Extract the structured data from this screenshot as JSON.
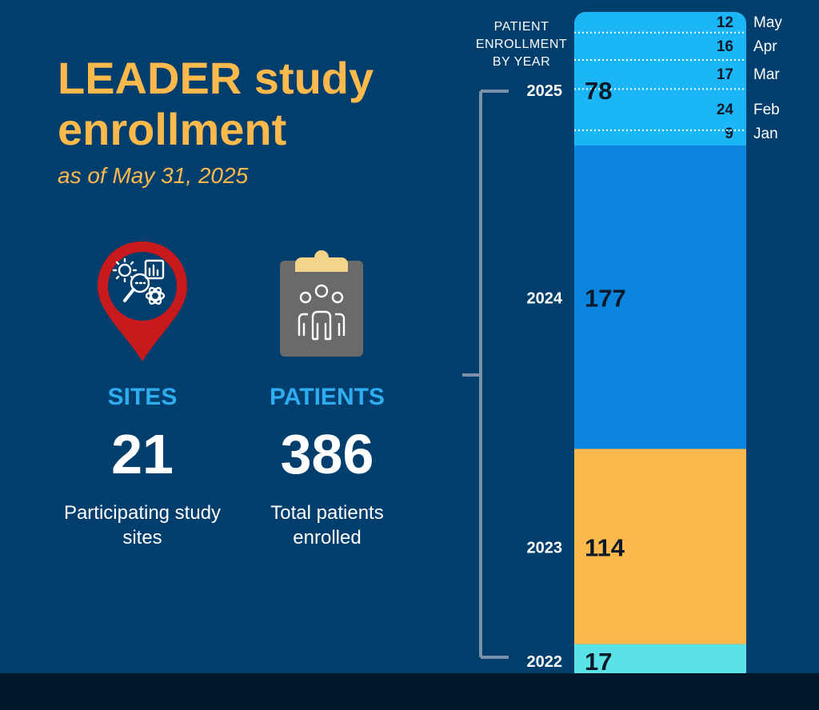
{
  "header": {
    "title": "LEADER study enrollment",
    "subtitle": "as of May 31, 2025"
  },
  "stats": {
    "sites": {
      "label": "SITES",
      "value": "21",
      "description": "Participating study sites",
      "icon": "map-pin-research-icon"
    },
    "patients": {
      "label": "PATIENTS",
      "value": "386",
      "description": "Total patients enrolled",
      "icon": "clipboard-people-icon"
    }
  },
  "colors": {
    "background": "#003e6e",
    "accent": "#fdb94c",
    "stat_label": "#2eaef0",
    "footer": "#01182a"
  },
  "chart_data": {
    "type": "bar",
    "title": "PATIENT ENROLLMENT BY YEAR",
    "stacked": true,
    "total": 386,
    "series": [
      {
        "year": "2022",
        "value": 17,
        "color": "#5ae2e6"
      },
      {
        "year": "2023",
        "value": 114,
        "color": "#fdb94c"
      },
      {
        "year": "2024",
        "value": 177,
        "color": "#0a86e0"
      },
      {
        "year": "2025",
        "value": 78,
        "color": "#1ab6f7",
        "months": [
          {
            "month": "Jan",
            "value": 9
          },
          {
            "month": "Feb",
            "value": 24
          },
          {
            "month": "Mar",
            "value": 17
          },
          {
            "month": "Apr",
            "value": 16
          },
          {
            "month": "May",
            "value": 12
          }
        ]
      }
    ]
  }
}
